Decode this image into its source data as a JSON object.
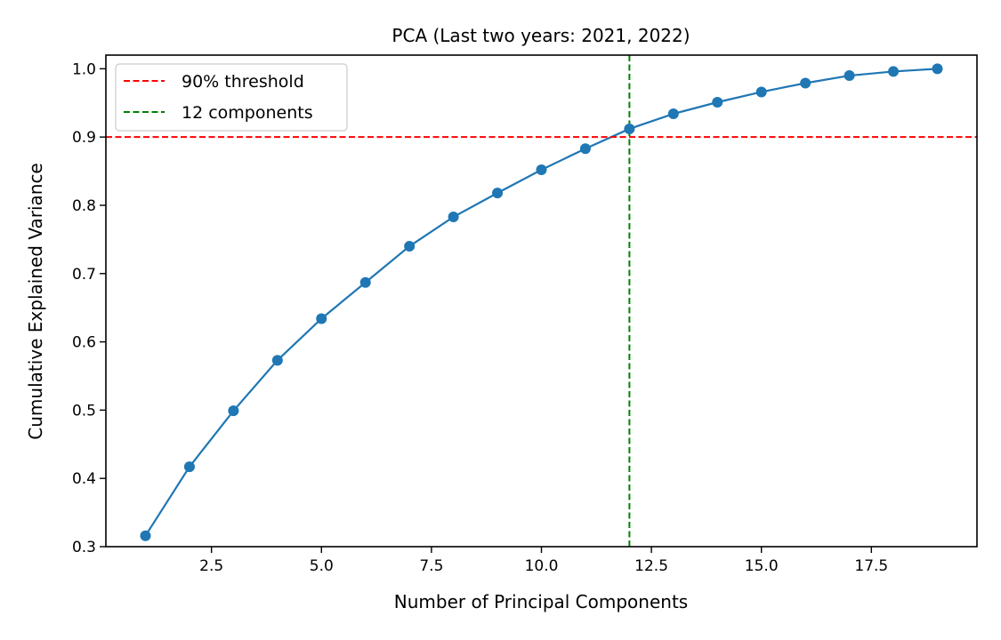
{
  "chart_data": {
    "type": "line",
    "title": "PCA (Last two years: 2021, 2022)",
    "xlabel": "Number of Principal Components",
    "ylabel": "Cumulative Explained Variance",
    "xlim": [
      0.1,
      19.9
    ],
    "ylim": [
      0.3,
      1.02
    ],
    "xticks": [
      2.5,
      5.0,
      7.5,
      10.0,
      12.5,
      15.0,
      17.5
    ],
    "xtick_labels": [
      "2.5",
      "5.0",
      "7.5",
      "10.0",
      "12.5",
      "15.0",
      "17.5"
    ],
    "yticks": [
      0.3,
      0.4,
      0.5,
      0.6,
      0.7,
      0.8,
      0.9,
      1.0
    ],
    "ytick_labels": [
      "0.3",
      "0.4",
      "0.5",
      "0.6",
      "0.7",
      "0.8",
      "0.9",
      "1.0"
    ],
    "grid": false,
    "legend_position": "top-left",
    "series": [
      {
        "color": "#1f77b4",
        "x": [
          1,
          2,
          3,
          4,
          5,
          6,
          7,
          8,
          9,
          10,
          11,
          12,
          13,
          14,
          15,
          16,
          17,
          18,
          19
        ],
        "y": [
          0.316,
          0.417,
          0.499,
          0.573,
          0.634,
          0.687,
          0.74,
          0.783,
          0.818,
          0.852,
          0.883,
          0.912,
          0.934,
          0.951,
          0.966,
          0.979,
          0.99,
          0.996,
          1.0
        ]
      }
    ],
    "reference_lines": [
      {
        "orientation": "horizontal",
        "value": 0.9,
        "color": "#ff0000",
        "style": "dashed",
        "label": "90% threshold"
      },
      {
        "orientation": "vertical",
        "value": 12,
        "color": "#008000",
        "style": "dashed",
        "label": "12 components"
      }
    ]
  }
}
